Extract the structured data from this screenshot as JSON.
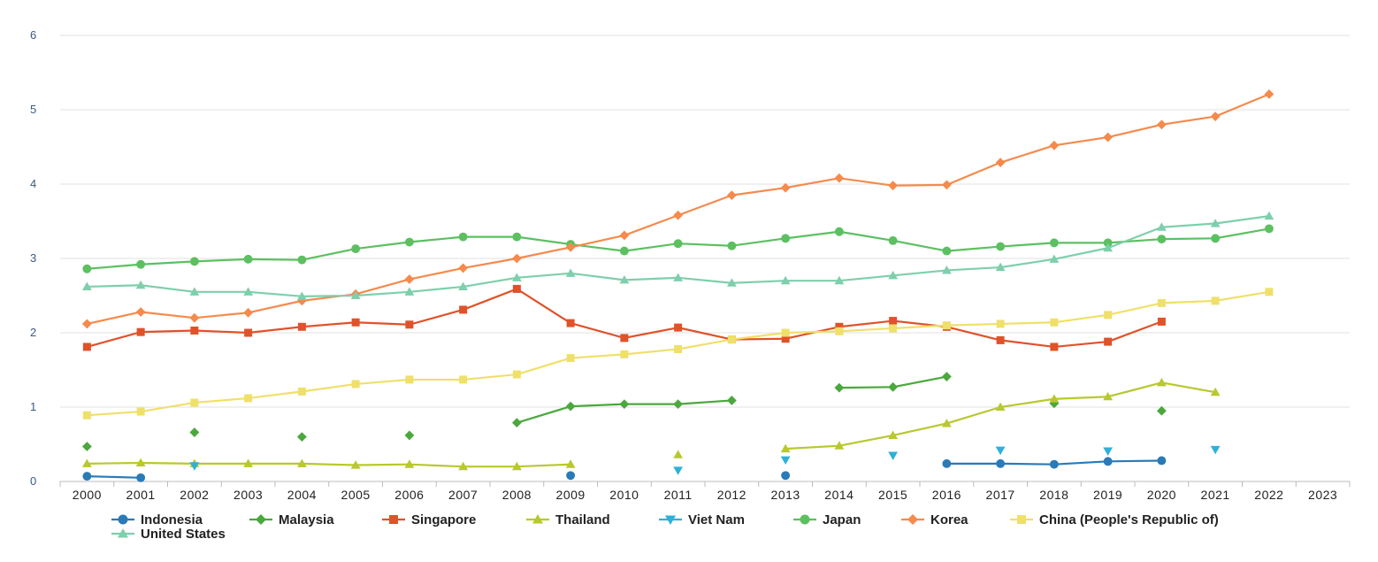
{
  "chart_data": {
    "type": "line",
    "title": "",
    "xlabel": "",
    "ylabel": "",
    "ylim": [
      0,
      6
    ],
    "yticks": [
      "0",
      "1",
      "2",
      "3",
      "4",
      "5",
      "6"
    ],
    "categories": [
      "2000",
      "2001",
      "2002",
      "2003",
      "2004",
      "2005",
      "2006",
      "2007",
      "2008",
      "2009",
      "2010",
      "2011",
      "2012",
      "2013",
      "2014",
      "2015",
      "2016",
      "2017",
      "2018",
      "2019",
      "2020",
      "2021",
      "2022",
      "2023"
    ],
    "grid": true,
    "legend_position": "bottom-left",
    "series": [
      {
        "name": "Indonesia",
        "color": "#2a7ab8",
        "marker": "circle",
        "values": [
          0.07,
          0.05,
          null,
          null,
          null,
          null,
          null,
          null,
          null,
          0.08,
          null,
          null,
          null,
          0.08,
          null,
          null,
          0.24,
          0.24,
          0.23,
          0.27,
          0.28,
          null,
          null,
          null
        ]
      },
      {
        "name": "Malaysia",
        "color": "#4aa83c",
        "marker": "diamond",
        "values": [
          0.47,
          null,
          0.66,
          null,
          0.6,
          null,
          0.62,
          null,
          0.79,
          1.01,
          1.04,
          1.04,
          1.09,
          null,
          1.26,
          1.27,
          1.41,
          null,
          1.05,
          null,
          0.95,
          null,
          null,
          null
        ]
      },
      {
        "name": "Singapore",
        "color": "#e0522a",
        "marker": "square",
        "values": [
          1.81,
          2.01,
          2.03,
          2.0,
          2.08,
          2.14,
          2.11,
          2.31,
          2.59,
          2.13,
          1.93,
          2.07,
          1.91,
          1.92,
          2.08,
          2.16,
          2.08,
          1.9,
          1.81,
          1.88,
          2.15,
          null,
          null,
          null
        ]
      },
      {
        "name": "Thailand",
        "color": "#b8c82e",
        "marker": "triangle-up",
        "values": [
          0.24,
          0.25,
          0.24,
          0.24,
          0.24,
          0.22,
          0.23,
          0.2,
          0.2,
          0.23,
          null,
          0.36,
          null,
          0.44,
          0.48,
          0.62,
          0.78,
          1.0,
          1.11,
          1.14,
          1.33,
          1.2,
          null,
          null
        ]
      },
      {
        "name": "Viet Nam",
        "color": "#2fb0d8",
        "marker": "triangle-down",
        "values": [
          null,
          null,
          0.21,
          null,
          null,
          null,
          null,
          null,
          null,
          null,
          null,
          0.15,
          null,
          0.29,
          null,
          0.35,
          null,
          0.42,
          null,
          0.41,
          null,
          0.43,
          null,
          null
        ]
      },
      {
        "name": "Japan",
        "color": "#5cc060",
        "marker": "circle",
        "values": [
          2.86,
          2.92,
          2.96,
          2.99,
          2.98,
          3.13,
          3.22,
          3.29,
          3.29,
          3.19,
          3.1,
          3.2,
          3.17,
          3.27,
          3.36,
          3.24,
          3.1,
          3.16,
          3.21,
          3.21,
          3.26,
          3.27,
          3.4,
          null
        ]
      },
      {
        "name": "Korea",
        "color": "#f58a4c",
        "marker": "diamond",
        "values": [
          2.12,
          2.28,
          2.2,
          2.27,
          2.43,
          2.52,
          2.72,
          2.87,
          3.0,
          3.15,
          3.31,
          3.58,
          3.85,
          3.95,
          4.08,
          3.98,
          3.99,
          4.29,
          4.52,
          4.63,
          4.8,
          4.91,
          5.21,
          null
        ]
      },
      {
        "name": "China (People's Republic of)",
        "color": "#efe06a",
        "marker": "square",
        "values": [
          0.89,
          0.94,
          1.06,
          1.12,
          1.21,
          1.31,
          1.37,
          1.37,
          1.44,
          1.66,
          1.71,
          1.78,
          1.91,
          2.0,
          2.02,
          2.06,
          2.1,
          2.12,
          2.14,
          2.24,
          2.4,
          2.43,
          2.55,
          null
        ]
      },
      {
        "name": "United States",
        "color": "#7ecfac",
        "marker": "triangle-up",
        "values": [
          2.62,
          2.64,
          2.55,
          2.55,
          2.49,
          2.5,
          2.55,
          2.62,
          2.74,
          2.8,
          2.71,
          2.74,
          2.67,
          2.7,
          2.7,
          2.77,
          2.84,
          2.88,
          2.99,
          3.14,
          3.42,
          3.47,
          3.57,
          null
        ]
      }
    ]
  }
}
